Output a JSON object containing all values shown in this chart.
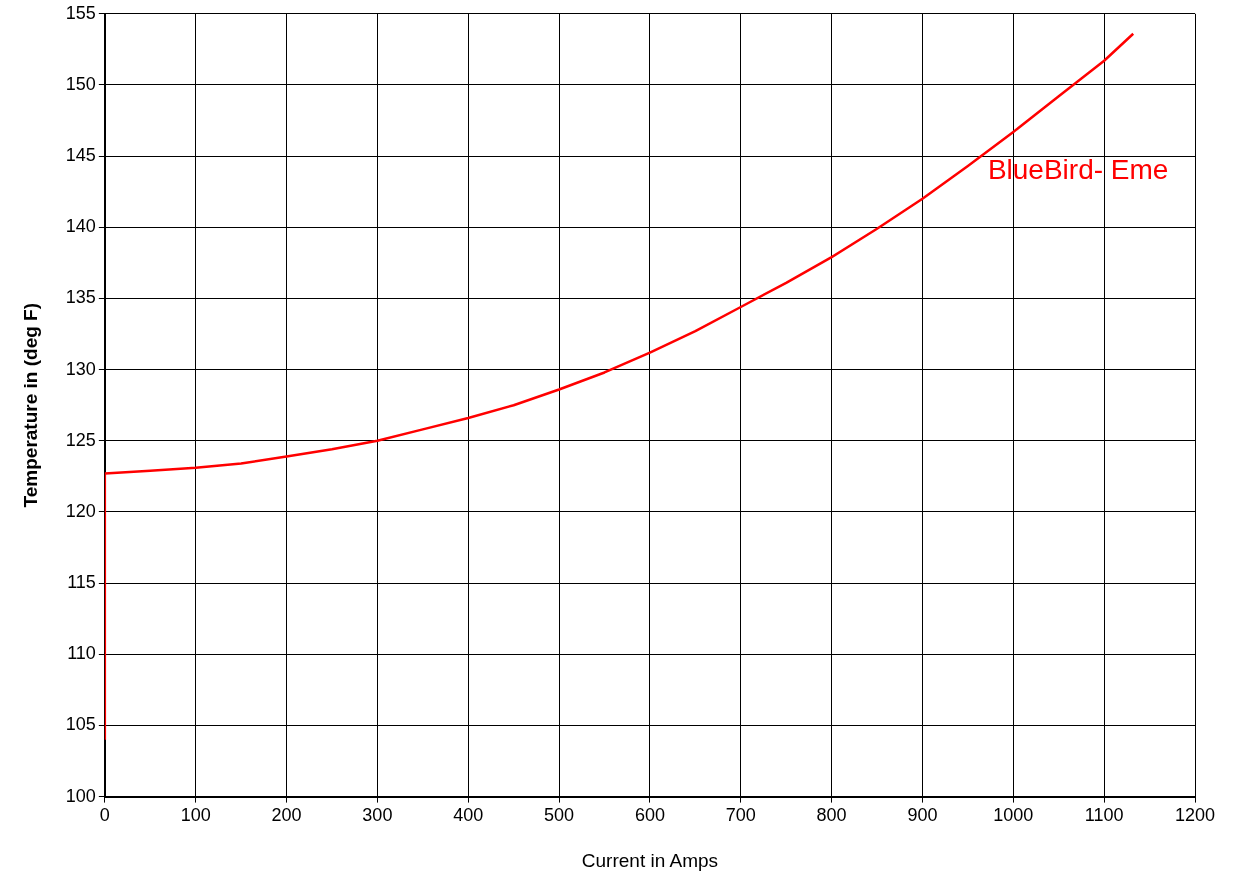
{
  "chart_data": {
    "type": "line",
    "xlabel": "Current in Amps",
    "ylabel": "Temperature in (deg F)",
    "xlim": [
      0,
      1200
    ],
    "ylim": [
      100,
      155
    ],
    "xticks": [
      0,
      100,
      200,
      300,
      400,
      500,
      600,
      700,
      800,
      900,
      1000,
      1100,
      1200
    ],
    "yticks": [
      100,
      105,
      110,
      115,
      120,
      125,
      130,
      135,
      140,
      145,
      150,
      155
    ],
    "grid": true,
    "legend": false,
    "marker": "none",
    "line_style": "solid",
    "series": [
      {
        "name": "BlueBird- Eme",
        "color": "#ff0000",
        "x": [
          0,
          0,
          50,
          100,
          150,
          200,
          250,
          300,
          350,
          400,
          450,
          500,
          550,
          600,
          650,
          700,
          750,
          800,
          850,
          900,
          950,
          1000,
          1050,
          1100,
          1132
        ],
        "values": [
          104,
          122.7,
          122.9,
          123.1,
          123.4,
          123.9,
          124.4,
          125.0,
          125.8,
          126.6,
          127.5,
          128.6,
          129.8,
          131.2,
          132.7,
          134.4,
          136.1,
          137.9,
          139.9,
          142.0,
          144.3,
          146.7,
          149.2,
          151.7,
          153.6
        ]
      }
    ]
  }
}
